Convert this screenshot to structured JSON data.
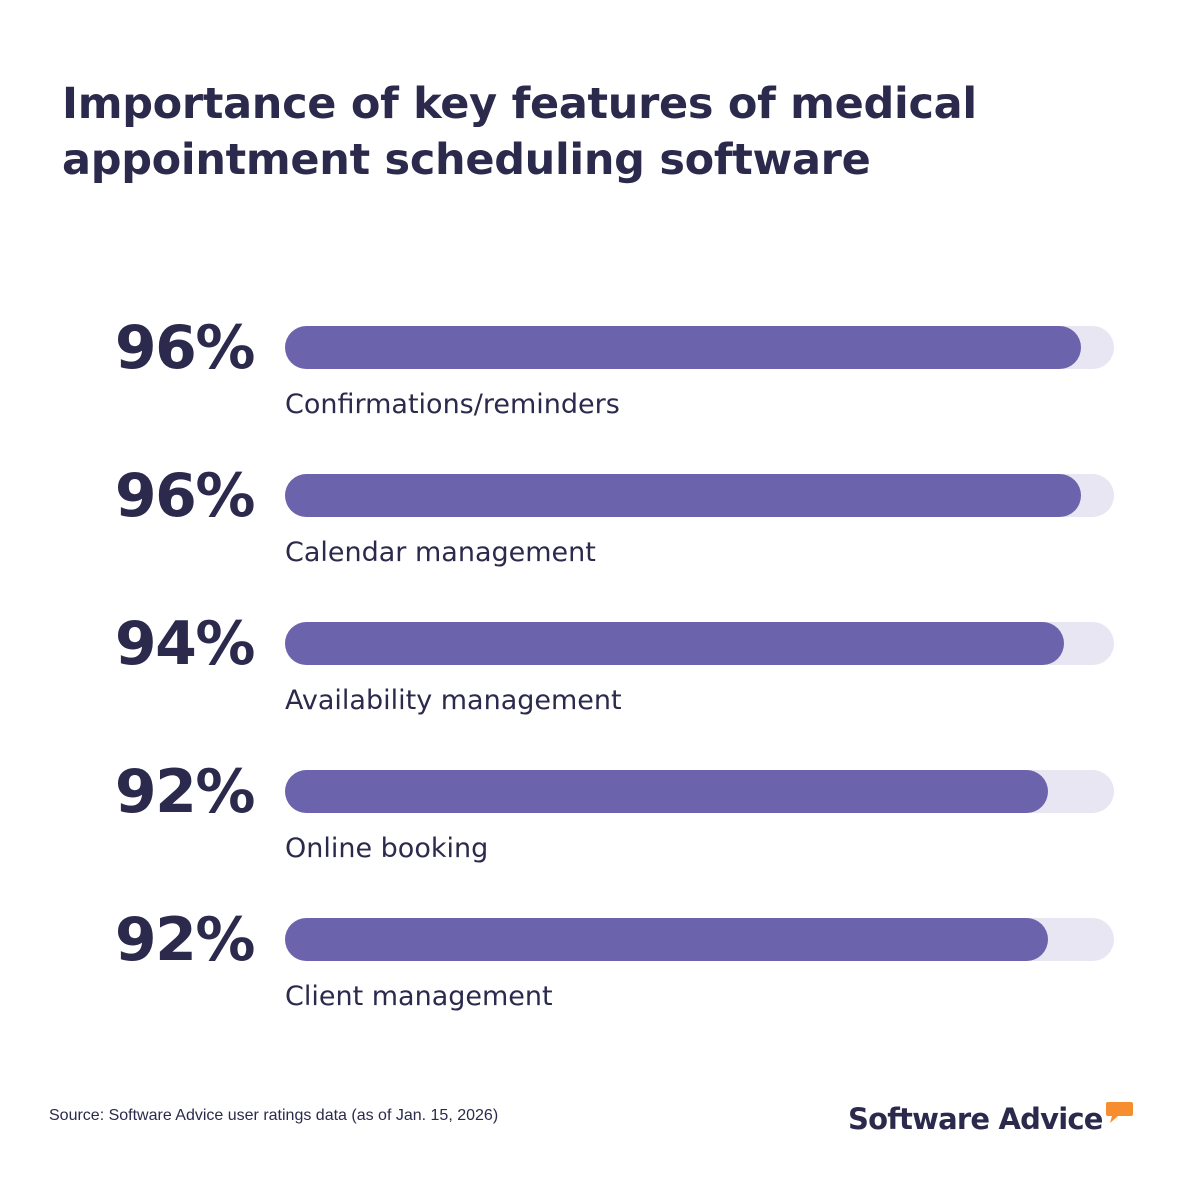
{
  "chart_data": {
    "type": "bar",
    "orientation": "horizontal",
    "title": "Importance of key features of medical appointment scheduling software",
    "title_lines": [
      "Importance of key features of medical",
      "appointment scheduling software"
    ],
    "categories": [
      "Confirmations/reminders",
      "Calendar management",
      "Availability management",
      "Online booking",
      "Client management"
    ],
    "values": [
      96,
      96,
      94,
      92,
      92
    ],
    "value_labels": [
      "96%",
      "96%",
      "94%",
      "92%",
      "92%"
    ],
    "xlim": [
      0,
      100
    ],
    "unit": "%",
    "grid": false,
    "legend": "none",
    "colors": {
      "bar": "#6c63ad",
      "track": "#e8e6f2",
      "text": "#2b2a4c",
      "brand_accent": "#f68d2e"
    }
  },
  "footer": {
    "source": "Source: Software Advice user ratings data (as of Jan. 15, 2026)",
    "brand": "Software Advice",
    "brand_icon": "speech-bubble-icon"
  }
}
